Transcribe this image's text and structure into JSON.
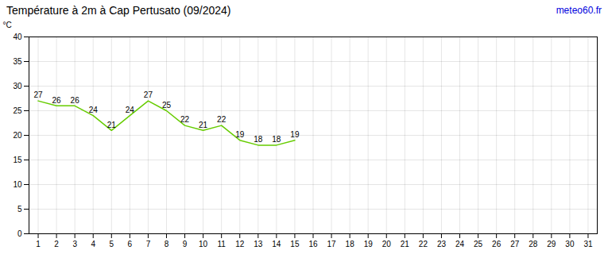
{
  "chart_data": {
    "type": "line",
    "title": "Température à 2m à Cap Pertusato (09/2024)",
    "y_label": "°C",
    "annotations": [
      {
        "text": "meteo60.fr",
        "color": "#0000dd"
      }
    ],
    "x": [
      1,
      2,
      3,
      4,
      5,
      6,
      7,
      8,
      9,
      10,
      11,
      12,
      13,
      14,
      15
    ],
    "values": [
      27,
      26,
      26,
      24,
      21,
      24,
      27,
      25,
      22,
      21,
      22,
      19,
      18,
      18,
      19
    ],
    "color": "#66cc00",
    "xlim": [
      0.5,
      31.5
    ],
    "xticks": [
      1,
      2,
      3,
      4,
      5,
      6,
      7,
      8,
      9,
      10,
      11,
      12,
      13,
      14,
      15,
      16,
      17,
      18,
      19,
      20,
      21,
      22,
      23,
      24,
      25,
      26,
      27,
      28,
      29,
      30,
      31
    ],
    "ylim": [
      0,
      40
    ],
    "yticks": [
      0,
      5,
      10,
      15,
      20,
      25,
      30,
      35,
      40
    ],
    "grid": true,
    "data_labels": true
  }
}
